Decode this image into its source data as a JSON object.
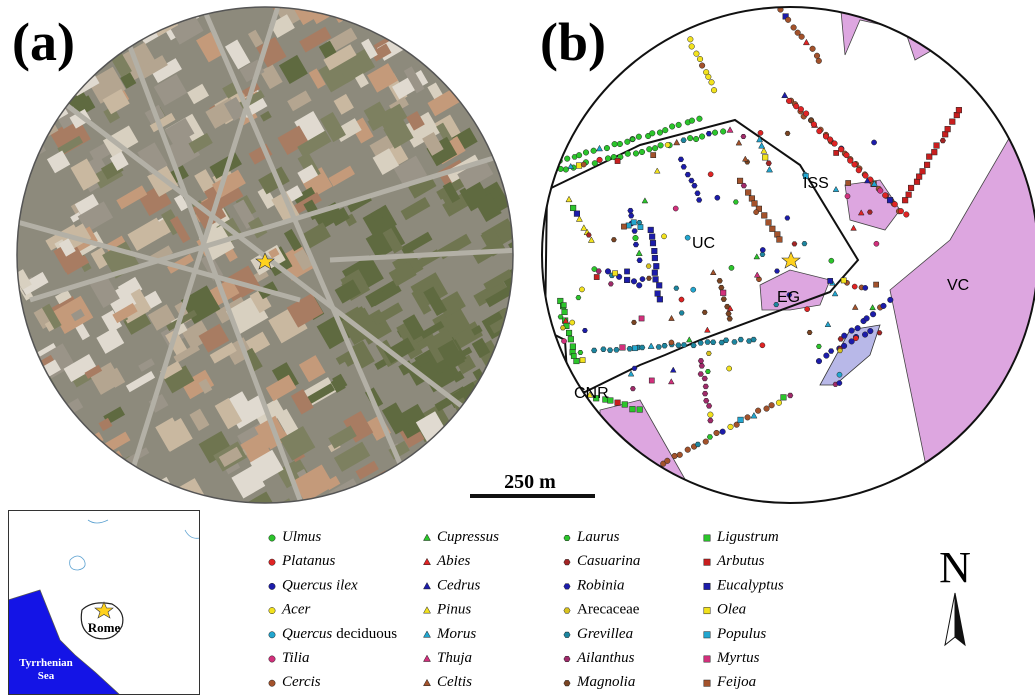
{
  "panel_a": {
    "label": "(a)"
  },
  "panel_b": {
    "label": "(b)",
    "areas": [
      "UC",
      "ISS",
      "EG",
      "VC",
      "CNR"
    ]
  },
  "scale_bar": {
    "label": "250 m"
  },
  "inset": {
    "city": "Rome",
    "sea": "Tyrrhenian Sea"
  },
  "north": {
    "label": "N"
  },
  "legend": {
    "entries": [
      {
        "parts": [
          {
            "text": "Ulmus",
            "italic": true
          }
        ],
        "shape": "circle",
        "color": "#2bc52b"
      },
      {
        "parts": [
          {
            "text": "Platanus",
            "italic": true
          }
        ],
        "shape": "circle",
        "color": "#e02424"
      },
      {
        "parts": [
          {
            "text": "Quercus ilex",
            "italic": true
          }
        ],
        "shape": "circle",
        "color": "#1c1caa"
      },
      {
        "parts": [
          {
            "text": "Acer",
            "italic": true
          }
        ],
        "shape": "circle",
        "color": "#f2e21e"
      },
      {
        "parts": [
          {
            "text": "Quercus",
            "italic": true
          },
          {
            "text": "deciduous",
            "italic": false
          }
        ],
        "shape": "circle",
        "color": "#22a6cf"
      },
      {
        "parts": [
          {
            "text": "Tilia",
            "italic": true
          }
        ],
        "shape": "circle",
        "color": "#d2307c"
      },
      {
        "parts": [
          {
            "text": "Cercis",
            "italic": true
          }
        ],
        "shape": "circle",
        "color": "#a3522b"
      },
      {
        "parts": [
          {
            "text": "Cupressus",
            "italic": true
          }
        ],
        "shape": "triangle",
        "color": "#2bc52b"
      },
      {
        "parts": [
          {
            "text": "Abies",
            "italic": true
          }
        ],
        "shape": "triangle",
        "color": "#e02424"
      },
      {
        "parts": [
          {
            "text": "Cedrus",
            "italic": true
          }
        ],
        "shape": "triangle",
        "color": "#1c1caa"
      },
      {
        "parts": [
          {
            "text": "Pinus",
            "italic": true
          }
        ],
        "shape": "triangle",
        "color": "#f2e21e"
      },
      {
        "parts": [
          {
            "text": "Morus",
            "italic": true
          }
        ],
        "shape": "triangle",
        "color": "#22a6cf"
      },
      {
        "parts": [
          {
            "text": "Thuja",
            "italic": true
          }
        ],
        "shape": "triangle",
        "color": "#d2307c"
      },
      {
        "parts": [
          {
            "text": "Celtis",
            "italic": true
          }
        ],
        "shape": "triangle",
        "color": "#a3522b"
      },
      {
        "parts": [
          {
            "text": "Laurus",
            "italic": true
          }
        ],
        "shape": "hexagon",
        "color": "#2bc52b"
      },
      {
        "parts": [
          {
            "text": "Casuarina",
            "italic": true
          }
        ],
        "shape": "hexagon",
        "color": "#a32424"
      },
      {
        "parts": [
          {
            "text": "Robinia",
            "italic": true
          }
        ],
        "shape": "hexagon",
        "color": "#1c1caa"
      },
      {
        "parts": [
          {
            "text": "Arecaceae",
            "italic": false
          }
        ],
        "shape": "hexagon",
        "color": "#d8c21e"
      },
      {
        "parts": [
          {
            "text": "Grevillea",
            "italic": true
          }
        ],
        "shape": "hexagon",
        "color": "#1c86a0"
      },
      {
        "parts": [
          {
            "text": "Ailanthus",
            "italic": true
          }
        ],
        "shape": "hexagon",
        "color": "#a02a6a"
      },
      {
        "parts": [
          {
            "text": "Magnolia",
            "italic": true
          }
        ],
        "shape": "hexagon",
        "color": "#7a4422"
      },
      {
        "parts": [
          {
            "text": "Ligustrum",
            "italic": true
          }
        ],
        "shape": "square",
        "color": "#2bc52b"
      },
      {
        "parts": [
          {
            "text": "Arbutus",
            "italic": true
          }
        ],
        "shape": "square",
        "color": "#c81e1e"
      },
      {
        "parts": [
          {
            "text": "Eucalyptus",
            "italic": true
          }
        ],
        "shape": "square",
        "color": "#1c1caa"
      },
      {
        "parts": [
          {
            "text": "Olea",
            "italic": true
          }
        ],
        "shape": "square",
        "color": "#f2e21e"
      },
      {
        "parts": [
          {
            "text": "Populus",
            "italic": true
          }
        ],
        "shape": "square",
        "color": "#22a6cf"
      },
      {
        "parts": [
          {
            "text": "Myrtus",
            "italic": true
          }
        ],
        "shape": "square",
        "color": "#d2307c"
      },
      {
        "parts": [
          {
            "text": "Feijoa",
            "italic": true
          }
        ],
        "shape": "square",
        "color": "#a3522b"
      }
    ]
  }
}
